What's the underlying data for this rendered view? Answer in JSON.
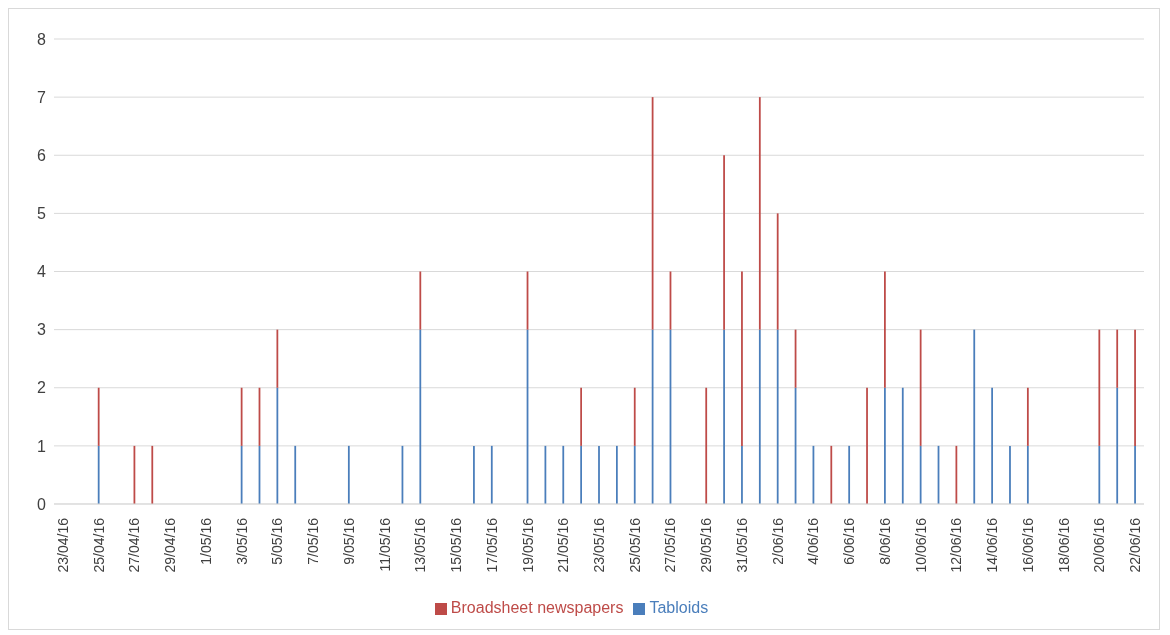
{
  "chart_data": {
    "type": "bar",
    "stacked": true,
    "categories": [
      "23/04/16",
      null,
      "25/04/16",
      null,
      "27/04/16",
      null,
      "29/04/16",
      null,
      "1/05/16",
      null,
      "3/05/16",
      null,
      "5/05/16",
      null,
      "7/05/16",
      null,
      "9/05/16",
      null,
      "11/05/16",
      null,
      "13/05/16",
      null,
      "15/05/16",
      null,
      "17/05/16",
      null,
      "19/05/16",
      null,
      "21/05/16",
      null,
      "23/05/16",
      null,
      "25/05/16",
      null,
      "27/05/16",
      null,
      "29/05/16",
      null,
      "31/05/16",
      null,
      "2/06/16",
      null,
      "4/06/16",
      null,
      "6/06/16",
      null,
      "8/06/16",
      null,
      "10/06/16",
      null,
      "12/06/16",
      null,
      "14/06/16",
      null,
      "16/06/16",
      null,
      "18/06/16",
      null,
      "20/06/16",
      null,
      "22/06/16"
    ],
    "series": [
      {
        "name": "Tabloids",
        "color": "#4a7ebb",
        "values": [
          0,
          0,
          1,
          0,
          0,
          0,
          0,
          0,
          0,
          0,
          1,
          1,
          2,
          1,
          0,
          0,
          1,
          0,
          0,
          1,
          3,
          0,
          0,
          1,
          1,
          0,
          3,
          1,
          1,
          1,
          1,
          1,
          1,
          3,
          3,
          0,
          0,
          3,
          1,
          3,
          3,
          2,
          1,
          0,
          1,
          0,
          2,
          2,
          1,
          1,
          0,
          3,
          2,
          1,
          1,
          0,
          0,
          0,
          1,
          2,
          1
        ]
      },
      {
        "name": "Broadsheet newspapers",
        "color": "#be4b48",
        "values": [
          0,
          0,
          1,
          0,
          1,
          1,
          0,
          0,
          0,
          0,
          1,
          1,
          1,
          0,
          0,
          0,
          0,
          0,
          0,
          0,
          1,
          0,
          0,
          0,
          0,
          0,
          1,
          0,
          0,
          1,
          0,
          0,
          1,
          4,
          1,
          0,
          2,
          3,
          3,
          4,
          2,
          1,
          0,
          1,
          0,
          2,
          2,
          0,
          2,
          0,
          1,
          0,
          0,
          0,
          1,
          0,
          0,
          0,
          2,
          1,
          2
        ]
      }
    ],
    "ylim": [
      0,
      8
    ],
    "yticks": [
      0,
      1,
      2,
      3,
      4,
      5,
      6,
      7,
      8
    ],
    "grid": "y",
    "legend": "bottom"
  }
}
